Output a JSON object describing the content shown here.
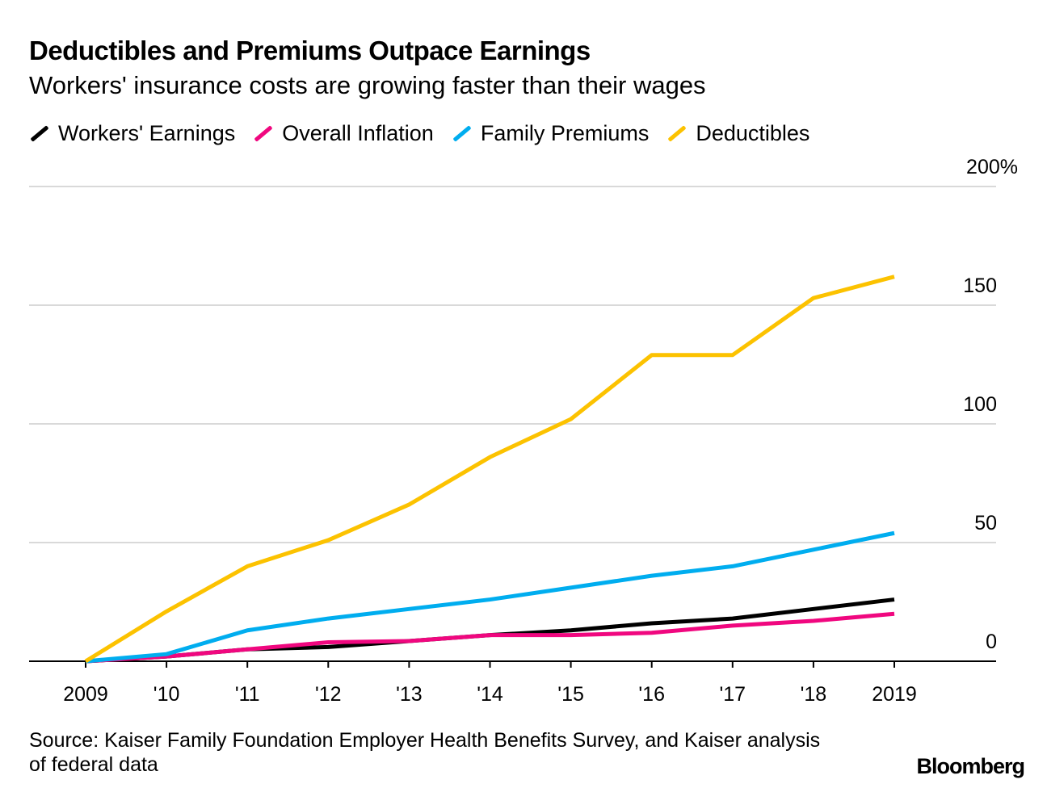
{
  "title": "Deductibles and Premiums Outpace Earnings",
  "subtitle": "Workers' insurance costs are growing faster than their wages",
  "source": "Source: Kaiser Family Foundation Employer Health Benefits Survey, and Kaiser analysis of federal data",
  "logo": "Bloomberg",
  "chart_data": {
    "type": "line",
    "x": [
      2009,
      2010,
      2011,
      2012,
      2013,
      2014,
      2015,
      2016,
      2017,
      2018,
      2019
    ],
    "x_tick_labels": [
      "2009",
      "'10",
      "'11",
      "'12",
      "'13",
      "'14",
      "'15",
      "'16",
      "'17",
      "'18",
      "2019"
    ],
    "y_ticks": [
      0,
      50,
      100,
      150,
      200
    ],
    "y_tick_labels": [
      "0",
      "50",
      "100",
      "150",
      "200%"
    ],
    "ylim": [
      0,
      200
    ],
    "grid": true,
    "legend_placement": "top",
    "series": [
      {
        "name": "Workers' Earnings",
        "color": "#000000",
        "values": [
          0,
          2,
          5,
          6,
          8.5,
          11,
          13,
          16,
          18,
          22,
          26
        ]
      },
      {
        "name": "Overall Inflation",
        "color": "#f0077f",
        "values": [
          0,
          2,
          5,
          8,
          8.5,
          11,
          11,
          12,
          15,
          17,
          20
        ]
      },
      {
        "name": "Family Premiums",
        "color": "#00adef",
        "values": [
          0,
          3,
          13,
          18,
          22,
          26,
          31,
          36,
          40,
          47,
          54
        ]
      },
      {
        "name": "Deductibles",
        "color": "#fcc200",
        "values": [
          0,
          21,
          40,
          51,
          66,
          86,
          102,
          129,
          129,
          153,
          162
        ]
      }
    ]
  }
}
